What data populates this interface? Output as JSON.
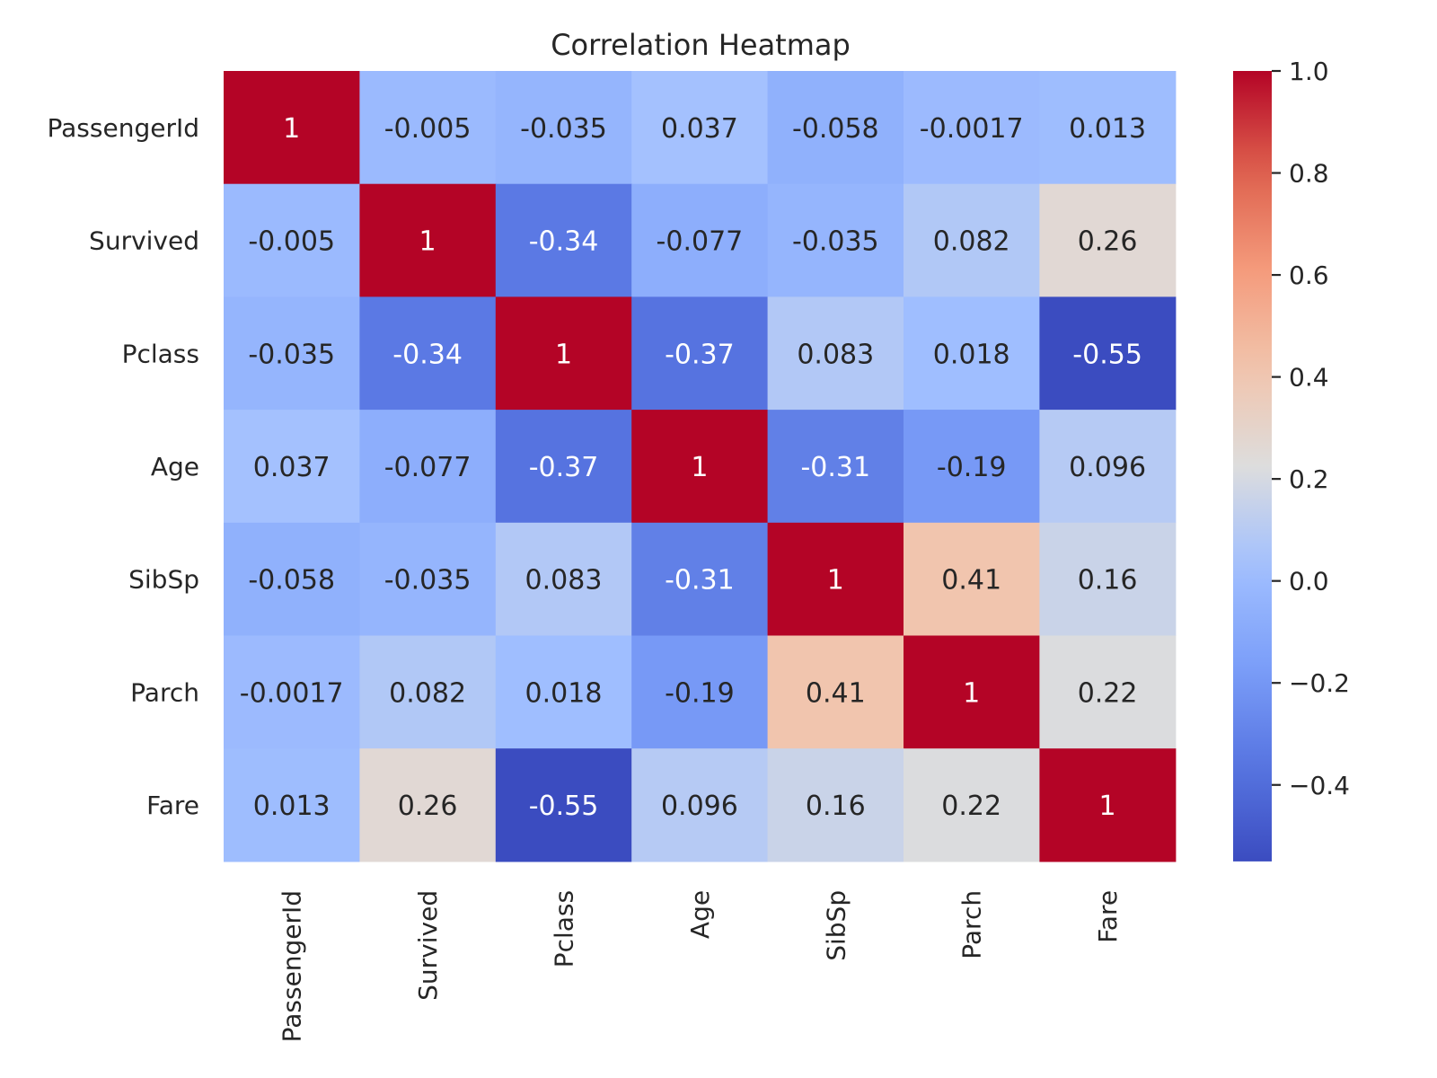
{
  "chart_data": {
    "type": "heatmap",
    "title": "Correlation Heatmap",
    "xlabel": "",
    "ylabel": "",
    "row_labels": [
      "PassengerId",
      "Survived",
      "Pclass",
      "Age",
      "SibSp",
      "Parch",
      "Fare"
    ],
    "col_labels": [
      "PassengerId",
      "Survived",
      "Pclass",
      "Age",
      "SibSp",
      "Parch",
      "Fare"
    ],
    "values": [
      [
        1,
        -0.005,
        -0.035,
        0.037,
        -0.058,
        -0.0017,
        0.013
      ],
      [
        -0.005,
        1,
        -0.34,
        -0.077,
        -0.035,
        0.082,
        0.26
      ],
      [
        -0.035,
        -0.34,
        1,
        -0.37,
        0.083,
        0.018,
        -0.55
      ],
      [
        0.037,
        -0.077,
        -0.37,
        1,
        -0.31,
        -0.19,
        0.096
      ],
      [
        -0.058,
        -0.035,
        0.083,
        -0.31,
        1,
        0.41,
        0.16
      ],
      [
        -0.0017,
        0.082,
        0.018,
        -0.19,
        0.41,
        1,
        0.22
      ],
      [
        0.013,
        0.26,
        -0.55,
        0.096,
        0.16,
        0.22,
        1
      ]
    ],
    "cell_labels": [
      [
        "1",
        "-0.005",
        "-0.035",
        "0.037",
        "-0.058",
        "-0.0017",
        "0.013"
      ],
      [
        "-0.005",
        "1",
        "-0.34",
        "-0.077",
        "-0.035",
        "0.082",
        "0.26"
      ],
      [
        "-0.035",
        "-0.34",
        "1",
        "-0.37",
        "0.083",
        "0.018",
        "-0.55"
      ],
      [
        "0.037",
        "-0.077",
        "-0.37",
        "1",
        "-0.31",
        "-0.19",
        "0.096"
      ],
      [
        "-0.058",
        "-0.035",
        "0.083",
        "-0.31",
        "1",
        "0.41",
        "0.16"
      ],
      [
        "-0.0017",
        "0.082",
        "0.018",
        "-0.19",
        "0.41",
        "1",
        "0.22"
      ],
      [
        "0.013",
        "0.26",
        "-0.55",
        "0.096",
        "0.16",
        "0.22",
        "1"
      ]
    ],
    "colormap": "coolwarm",
    "vmin": -0.55,
    "vmax": 1.0,
    "colorbar": {
      "ticks": [
        1.0,
        0.8,
        0.6,
        0.4,
        0.2,
        0.0,
        -0.2,
        -0.4
      ],
      "tick_labels": [
        "1.0",
        "0.8",
        "0.6",
        "0.4",
        "0.2",
        "0.0",
        "−0.2",
        "−0.4"
      ],
      "placement": "right"
    },
    "x_tick_rotation": "vertical",
    "grid": false
  }
}
